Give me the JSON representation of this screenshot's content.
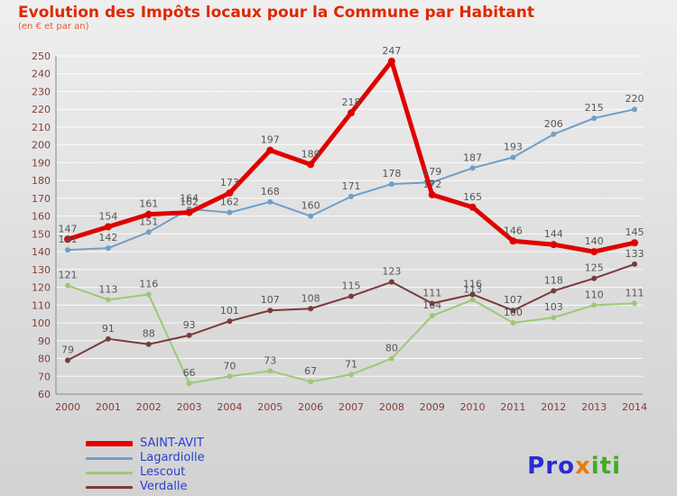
{
  "title": "Evolution des Impôts locaux pour la Commune par Habitant",
  "subtitle": "(en € et par an)",
  "chart_data": {
    "type": "line",
    "x": [
      2000,
      2001,
      2002,
      2003,
      2004,
      2005,
      2006,
      2007,
      2008,
      2009,
      2010,
      2011,
      2012,
      2013,
      2014
    ],
    "series": [
      {
        "name": "SAINT-AVIT",
        "color": "#e00000",
        "width": 5,
        "values": [
          147,
          154,
          161,
          162,
          173,
          197,
          189,
          218,
          247,
          172,
          165,
          146,
          144,
          140,
          145
        ]
      },
      {
        "name": "Lagardiolle",
        "color": "#6f9fc8",
        "width": 2,
        "values": [
          141,
          142,
          151,
          164,
          162,
          168,
          160,
          171,
          178,
          179,
          187,
          193,
          206,
          215,
          220
        ]
      },
      {
        "name": "Lescout",
        "color": "#9dc878",
        "width": 2,
        "values": [
          121,
          113,
          116,
          66,
          70,
          73,
          67,
          71,
          80,
          104,
          113,
          100,
          103,
          110,
          111
        ]
      },
      {
        "name": "Verdalle",
        "color": "#7a3b3b",
        "width": 2,
        "values": [
          79,
          91,
          88,
          93,
          101,
          107,
          108,
          115,
          123,
          111,
          116,
          107,
          118,
          125,
          133
        ]
      }
    ],
    "ylim": [
      60,
      250
    ],
    "ytick_step": 10,
    "grid": true,
    "legend_position": "bottom-left",
    "axis_label_color": "#8b3a3a",
    "value_label_color": "#555555",
    "grid_color": "rgba(255,255,255,0.85)",
    "axis_line_color": "#8a8a8a"
  },
  "logo": {
    "text": "Proxiti",
    "letters": [
      {
        "ch": "P",
        "color": "#2a2ad4"
      },
      {
        "ch": "r",
        "color": "#2a2ad4"
      },
      {
        "ch": "o",
        "color": "#2a2ad4"
      },
      {
        "ch": "x",
        "color": "#f07800"
      },
      {
        "ch": "i",
        "color": "#3fae20"
      },
      {
        "ch": "t",
        "color": "#3fae20"
      },
      {
        "ch": "i",
        "color": "#3fae20"
      }
    ]
  }
}
